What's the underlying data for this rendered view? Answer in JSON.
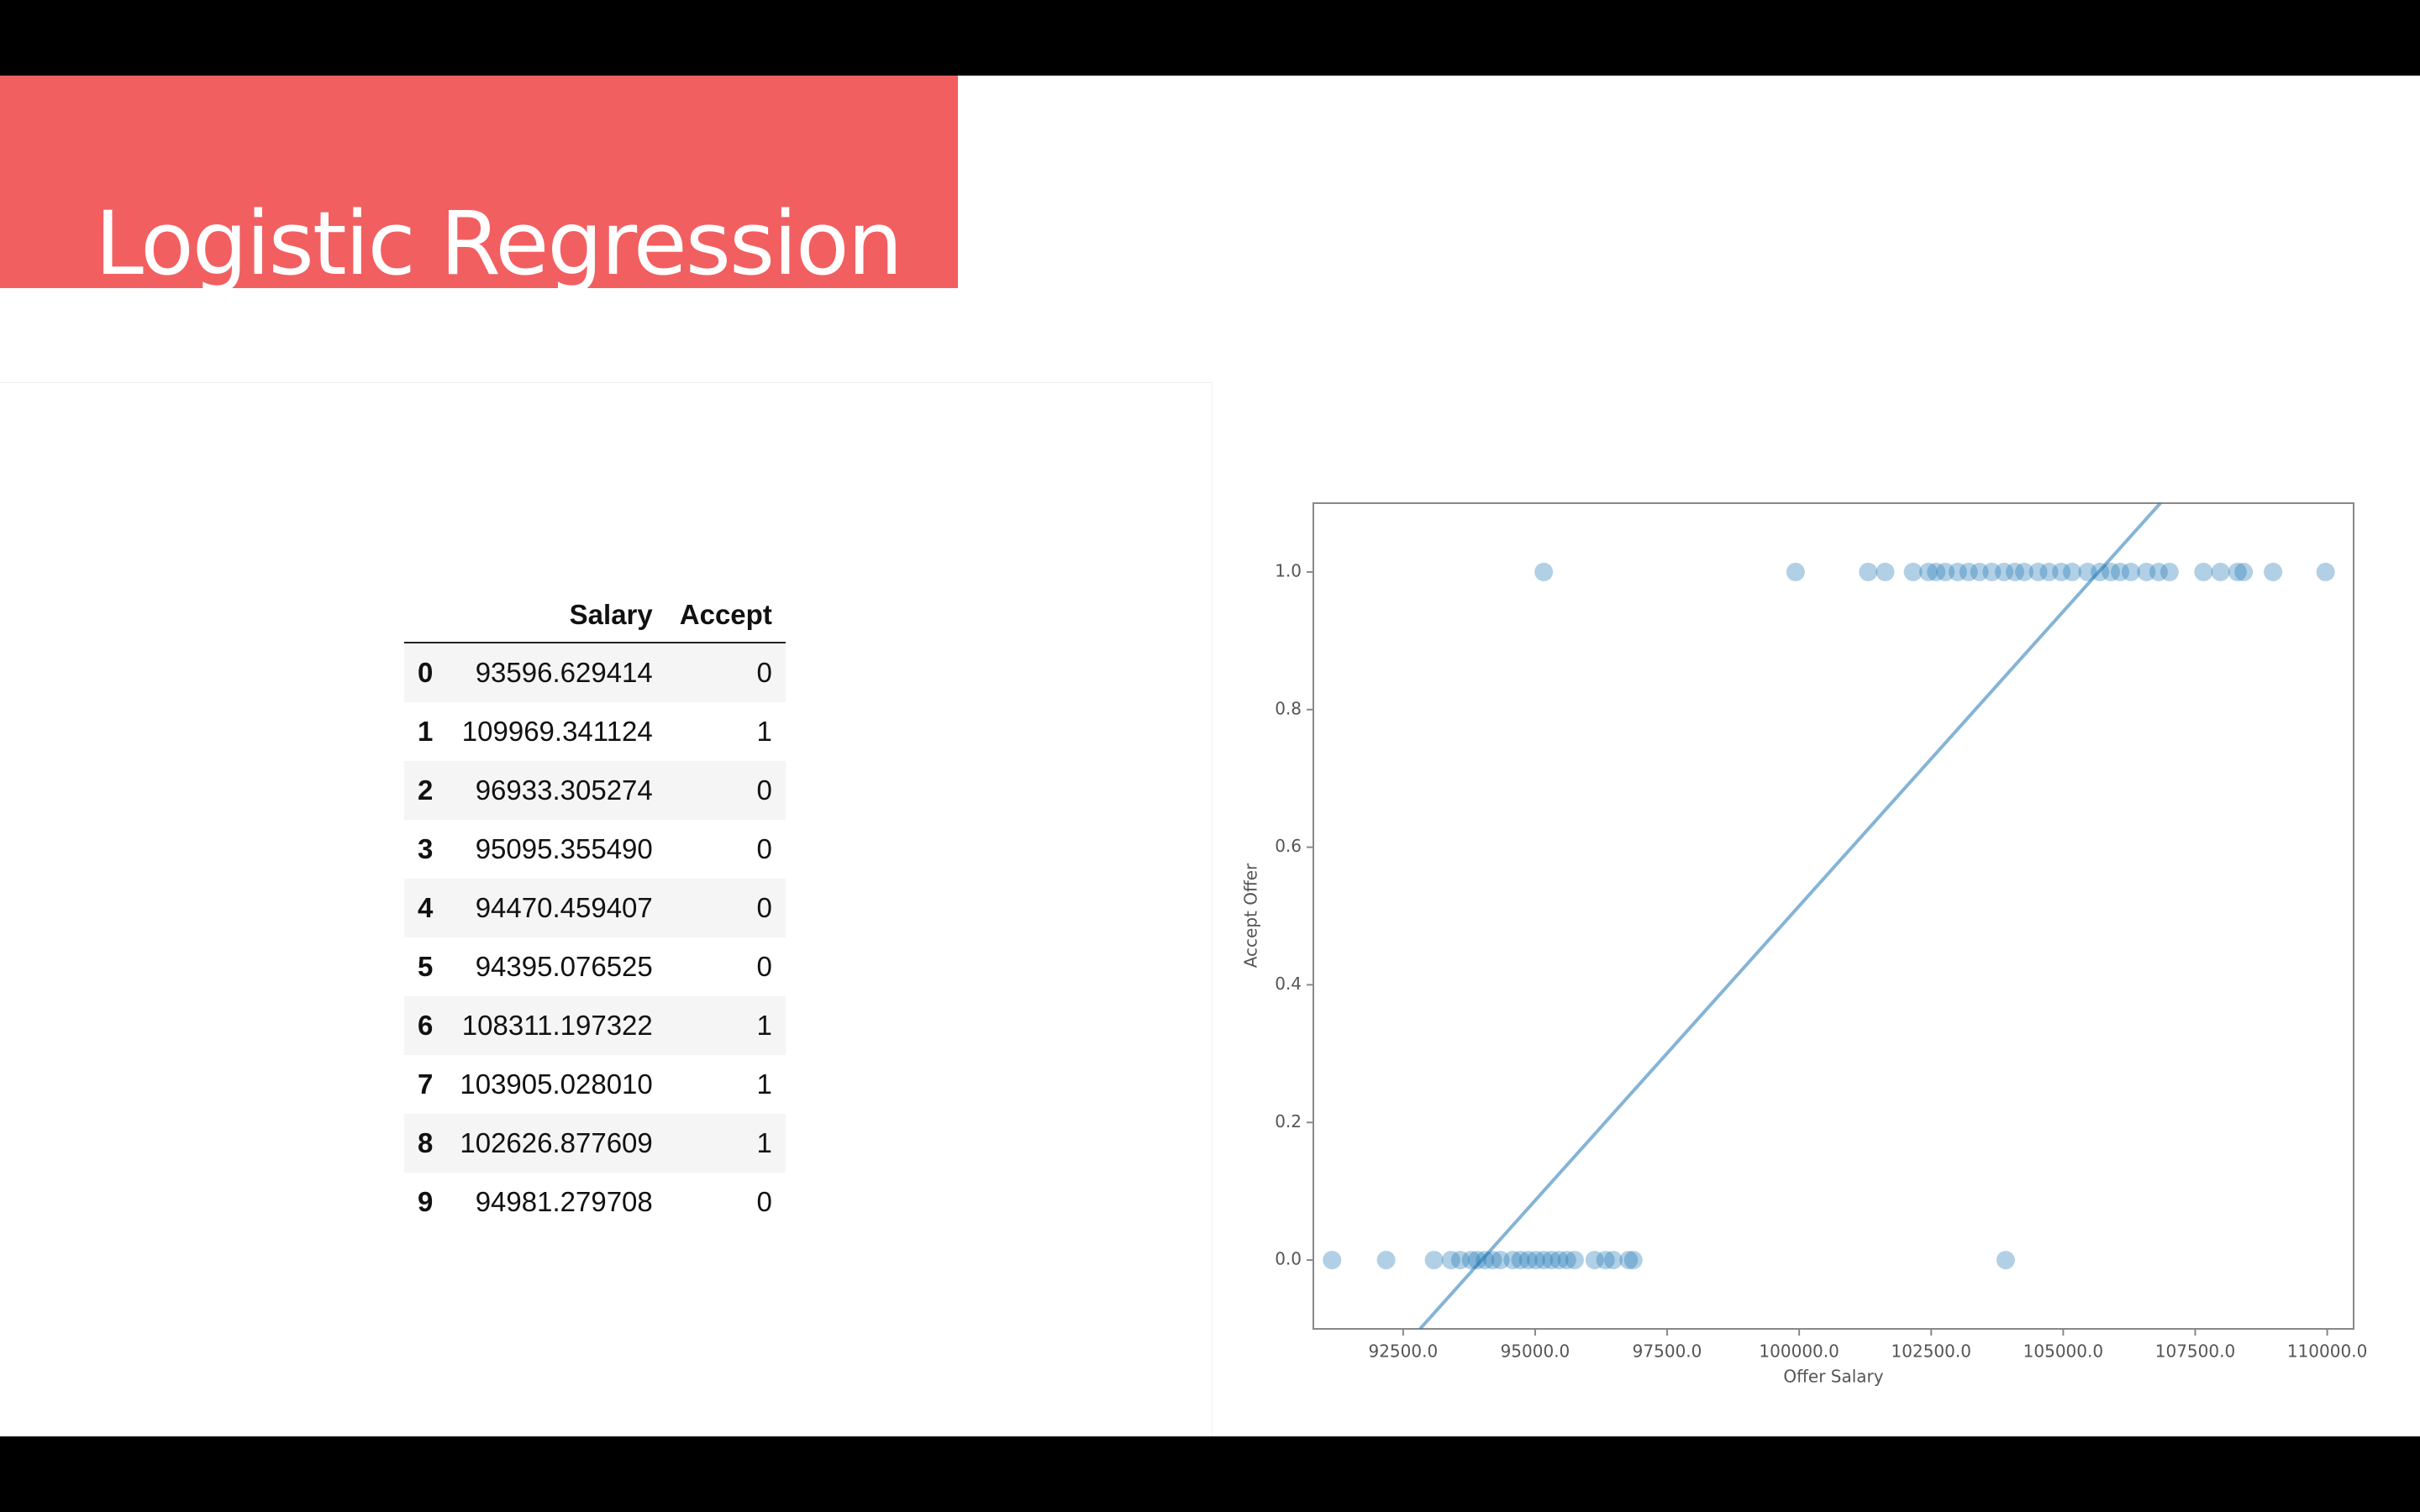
{
  "header": {
    "title": "Logistic Regression"
  },
  "table": {
    "columns": [
      "Salary",
      "Accept"
    ],
    "rows": [
      [
        0,
        "93596.629414",
        0
      ],
      [
        1,
        "109969.341124",
        1
      ],
      [
        2,
        "96933.305274",
        0
      ],
      [
        3,
        "95095.355490",
        0
      ],
      [
        4,
        "94470.459407",
        0
      ],
      [
        5,
        "94395.076525",
        0
      ],
      [
        6,
        "108311.197322",
        1
      ],
      [
        7,
        "103905.028010",
        1
      ],
      [
        8,
        "102626.877609",
        1
      ],
      [
        9,
        "94981.279708",
        0
      ]
    ]
  },
  "chart_data": {
    "type": "scatter",
    "xlabel": "Offer Salary",
    "ylabel": "Accept Offer",
    "color": "#1f77b4",
    "alpha": 0.35,
    "x": [
      91154,
      92178,
      93085,
      93407,
      93583,
      93787,
      93904,
      94051,
      94197,
      94343,
      94577,
      94724,
      94870,
      95016,
      95163,
      95309,
      95455,
      95602,
      95748,
      96128,
      96333,
      96479,
      96772,
      96860,
      103911,
      95163,
      99932,
      101307,
      101629,
      102156,
      102448,
      102595,
      102770,
      103004,
      103209,
      103414,
      103648,
      103882,
      104087,
      104263,
      104526,
      104731,
      104965,
      105170,
      105462,
      105697,
      105902,
      106077,
      106282,
      106575,
      106808,
      107013,
      107657,
      107979,
      108301,
      108418,
      108974,
      109969
    ],
    "y": [
      0,
      0,
      0,
      0,
      0,
      0,
      0,
      0,
      0,
      0,
      0,
      0,
      0,
      0,
      0,
      0,
      0,
      0,
      0,
      0,
      0,
      0,
      0,
      0,
      0,
      1,
      1,
      1,
      1,
      1,
      1,
      1,
      1,
      1,
      1,
      1,
      1,
      1,
      1,
      1,
      1,
      1,
      1,
      1,
      1,
      1,
      1,
      1,
      1,
      1,
      1,
      1,
      1,
      1,
      1,
      1,
      1,
      1
    ],
    "line": {
      "x": [
        92820,
        106840
      ],
      "y": [
        -0.1,
        1.1
      ]
    },
    "xlim": [
      90800,
      110500
    ],
    "ylim": [
      -0.1,
      1.1
    ],
    "xticks": [
      {
        "value": 92500,
        "label": "92500.0"
      },
      {
        "value": 95000,
        "label": "95000.0"
      },
      {
        "value": 97500,
        "label": "97500.0"
      },
      {
        "value": 100000,
        "label": "100000.0"
      },
      {
        "value": 102500,
        "label": "102500.0"
      },
      {
        "value": 105000,
        "label": "105000.0"
      },
      {
        "value": 107500,
        "label": "107500.0"
      },
      {
        "value": 110000,
        "label": "110000.0"
      }
    ],
    "yticks": [
      {
        "value": 0,
        "label": "0.0"
      },
      0.2,
      0.4,
      0.6,
      0.8,
      {
        "value": 1,
        "label": "1.0"
      }
    ]
  }
}
